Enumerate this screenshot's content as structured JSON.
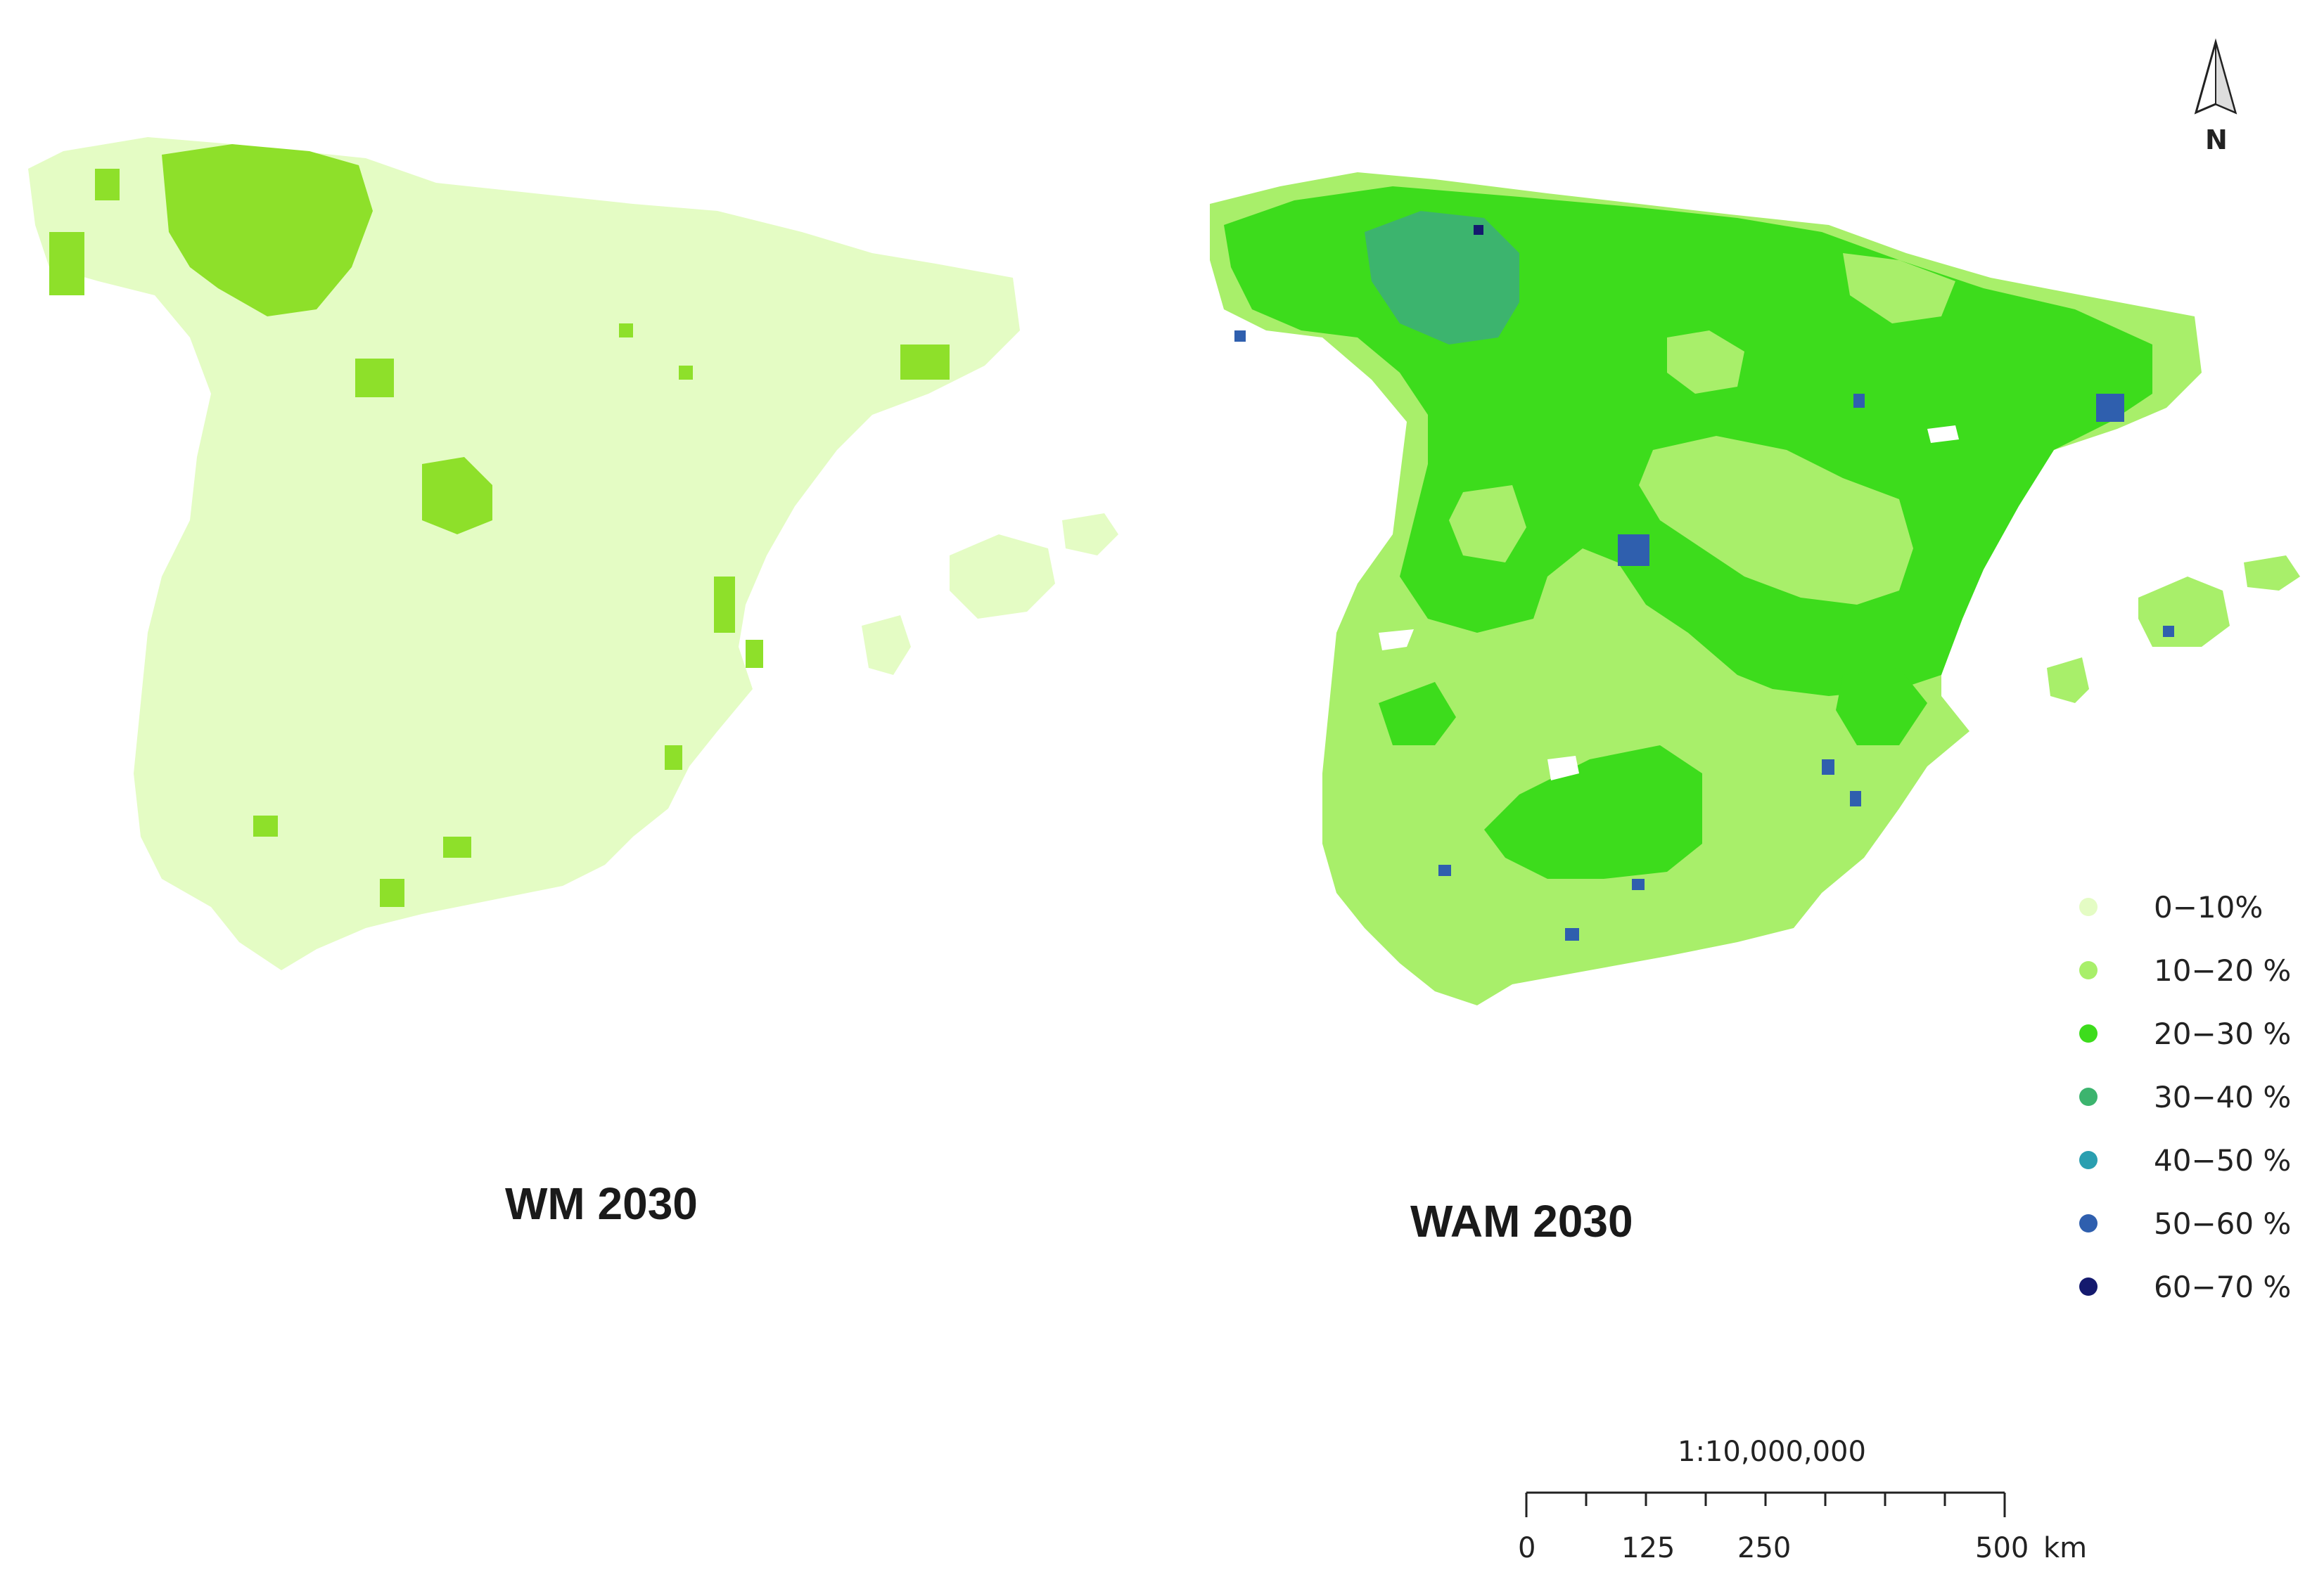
{
  "panels": [
    {
      "title": "WM 2030"
    },
    {
      "title": "WAM 2030"
    }
  ],
  "legend": {
    "items": [
      {
        "label": "0−10%",
        "color": "#e4fcc4"
      },
      {
        "label": "10−20 %",
        "color": "#a8ef6a"
      },
      {
        "label": "20−30 %",
        "color": "#3ddc1c"
      },
      {
        "label": "30−40 %",
        "color": "#3cb46e"
      },
      {
        "label": "40−50 %",
        "color": "#2a9fb0"
      },
      {
        "label": "50−60 %",
        "color": "#2f5fae"
      },
      {
        "label": "60−70 %",
        "color": "#141a6e"
      }
    ]
  },
  "scale_bar": {
    "ratio": "1:10,000,000",
    "ticks": [
      "0",
      "125",
      "250",
      "500"
    ],
    "unit": "km"
  },
  "north_arrow": {
    "label": "N"
  },
  "map_colors": {
    "wm_base": "#e4fcc4",
    "wm_patch": "#8ee02a",
    "wam_light": "#a8ef6a",
    "wam_mid": "#3ddc1c",
    "wam_teal": "#3cb46e",
    "wam_dark": "#2f5fae",
    "wam_darkest": "#141a6e"
  }
}
